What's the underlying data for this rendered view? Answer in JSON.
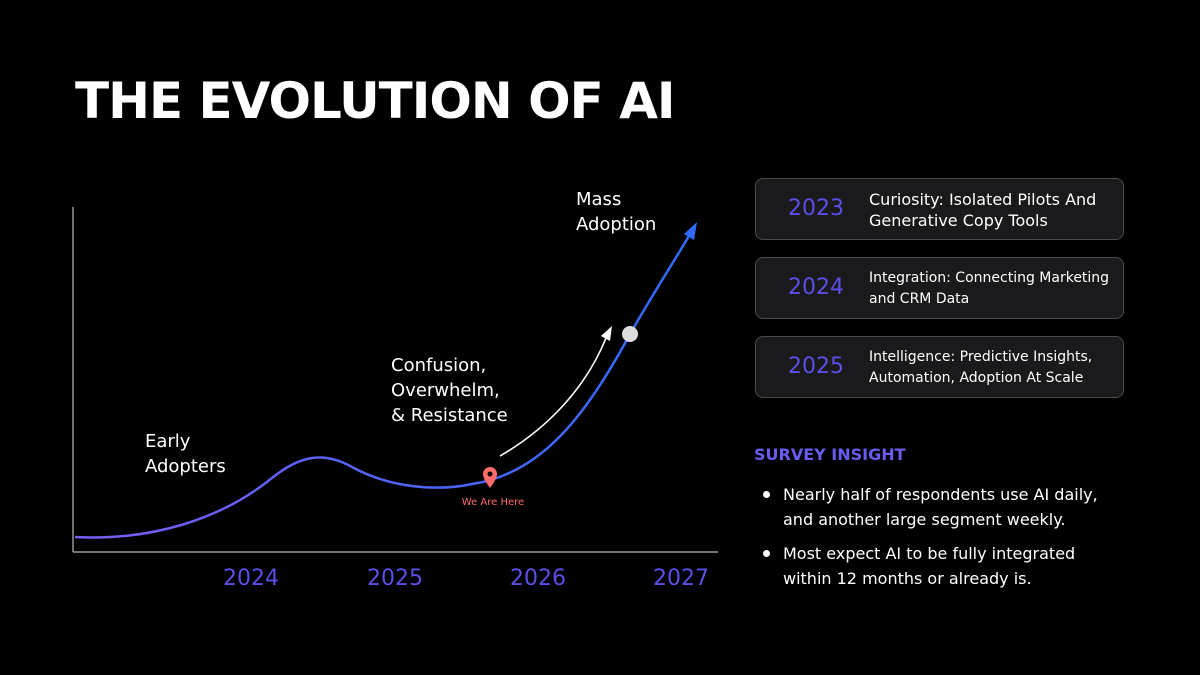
{
  "title": "THE EVOLUTION OF AI",
  "diagram": {
    "x_labels": [
      "2024",
      "2025",
      "2026",
      "2027"
    ],
    "annotations": [
      {
        "lines": [
          "Early",
          "Adopters"
        ]
      },
      {
        "lines": [
          "Confusion,",
          "Overwhelm,",
          "& Resistance"
        ]
      },
      {
        "lines": [
          "Mass",
          "Adoption"
        ]
      }
    ],
    "marker_label": "We Are Here"
  },
  "timeline": [
    {
      "year": "2023",
      "lines": [
        "Curiosity: Isolated Pilots And",
        "Generative Copy Tools"
      ]
    },
    {
      "year": "2024",
      "lines": [
        "Integration: Connecting Marketing",
        "and CRM Data"
      ]
    },
    {
      "year": "2025",
      "lines": [
        "Intelligence: Predictive Insights,",
        "Automation, Adoption At Scale"
      ]
    }
  ],
  "survey": {
    "heading": "SURVEY INSIGHT",
    "bullets": [
      {
        "lines": [
          "Nearly half of respondents use AI daily,",
          "and another large segment weekly."
        ]
      },
      {
        "lines": [
          "Most expect AI to be fully integrated",
          "within 12 months or already is."
        ]
      }
    ]
  }
}
